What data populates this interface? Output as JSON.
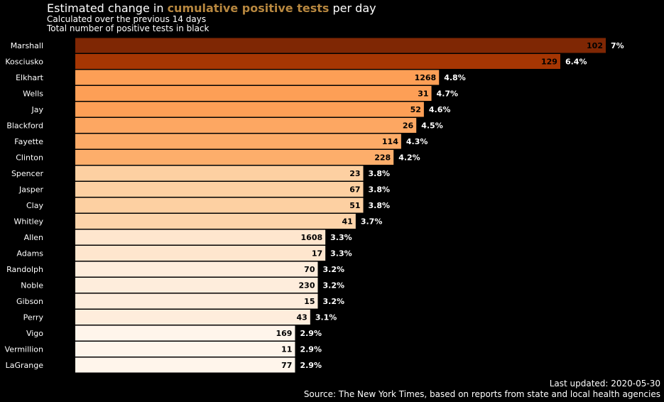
{
  "title": {
    "prefix": "Estimated change in ",
    "highlight": "cumulative positive tests",
    "suffix": " per day",
    "highlight_color": "#b7873f"
  },
  "subtitle_lines": [
    "Calculated over the previous 14 days",
    "Total number of positive tests in black"
  ],
  "footer": {
    "updated": "Last updated: 2020-05-30",
    "source": "Source: The New York Times, based on reports from state and local health agencies"
  },
  "chart_data": {
    "type": "bar",
    "orientation": "horizontal",
    "categories": [
      "Marshall",
      "Kosciusko",
      "Elkhart",
      "Wells",
      "Jay",
      "Blackford",
      "Fayette",
      "Clinton",
      "Spencer",
      "Jasper",
      "Clay",
      "Whitley",
      "Allen",
      "Adams",
      "Randolph",
      "Noble",
      "Gibson",
      "Perry",
      "Vigo",
      "Vermillion",
      "LaGrange"
    ],
    "values": [
      7,
      6.4,
      4.8,
      4.7,
      4.6,
      4.5,
      4.3,
      4.2,
      3.8,
      3.8,
      3.8,
      3.7,
      3.3,
      3.3,
      3.2,
      3.2,
      3.2,
      3.1,
      2.9,
      2.9,
      2.9
    ],
    "value_labels": [
      "7%",
      "6.4%",
      "4.8%",
      "4.7%",
      "4.6%",
      "4.5%",
      "4.3%",
      "4.2%",
      "3.8%",
      "3.8%",
      "3.8%",
      "3.7%",
      "3.3%",
      "3.3%",
      "3.2%",
      "3.2%",
      "3.2%",
      "3.1%",
      "2.9%",
      "2.9%",
      "2.9%"
    ],
    "totals": [
      102,
      129,
      1268,
      31,
      52,
      26,
      114,
      228,
      23,
      67,
      51,
      41,
      1608,
      17,
      70,
      230,
      15,
      43,
      169,
      11,
      77
    ],
    "colors": [
      "#7f2704",
      "#a63603",
      "#fd9f56",
      "#fd9f56",
      "#fd9f56",
      "#fda762",
      "#fdab67",
      "#fdae6b",
      "#fdd0a2",
      "#fdd0a2",
      "#fdd0a2",
      "#fdd4aa",
      "#fee6ce",
      "#fee6ce",
      "#feeddc",
      "#feeddc",
      "#feeddc",
      "#feeddc",
      "#fff5eb",
      "#fff5eb",
      "#fff5eb"
    ],
    "unit": "%",
    "xlim": [
      0,
      7
    ],
    "grid": false
  }
}
